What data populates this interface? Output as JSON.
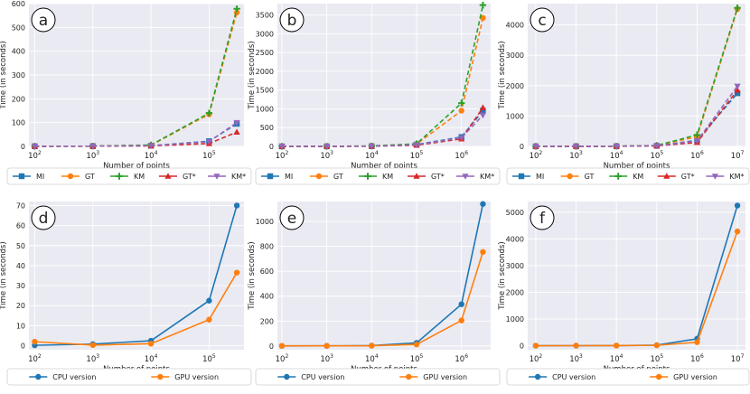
{
  "colors": {
    "plot_bg": "#eaeaf2",
    "grid": "#ffffff",
    "MI": "#1f77b4",
    "GT": "#ff7f0e",
    "KM": "#2ca02c",
    "GT*": "#d62728",
    "KM*": "#9467bd",
    "CPU version": "#1f77b4",
    "GPU version": "#ff7f0e"
  },
  "legend_top": {
    "entries": [
      {
        "name": "MI",
        "color": "#1f77b4",
        "marker": "square"
      },
      {
        "name": "GT",
        "color": "#ff7f0e",
        "marker": "circle"
      },
      {
        "name": "KM",
        "color": "#2ca02c",
        "marker": "plus"
      },
      {
        "name": "GT*",
        "color": "#d62728",
        "marker": "triangle"
      },
      {
        "name": "KM*",
        "color": "#9467bd",
        "marker": "triangle-down"
      }
    ]
  },
  "legend_bottom": {
    "entries": [
      {
        "name": "CPU version",
        "color": "#1f77b4",
        "marker": "circle"
      },
      {
        "name": "GPU version",
        "color": "#ff7f0e",
        "marker": "circle"
      }
    ]
  },
  "chart_data": [
    {
      "panel_label": "a",
      "type": "line",
      "xscale": "log",
      "xlabel": "Number of points",
      "ylabel": "Time (in seconds)",
      "ylim": [
        0,
        600
      ],
      "yticks": [
        0,
        100,
        200,
        300,
        400,
        500,
        600
      ],
      "xlim_exp": [
        1.9,
        5.6
      ],
      "xtick_exps": [
        2,
        3,
        4,
        5
      ],
      "line_style": "dashed",
      "x": [
        100,
        1000,
        10000,
        100000,
        300000
      ],
      "series": [
        {
          "name": "MI",
          "values": [
            0.5,
            1,
            3,
            22,
            95
          ]
        },
        {
          "name": "GT",
          "values": [
            0.5,
            1,
            5,
            135,
            563
          ]
        },
        {
          "name": "KM",
          "values": [
            0.5,
            1,
            6,
            140,
            578
          ]
        },
        {
          "name": "GT*",
          "values": [
            0.3,
            0.8,
            2,
            12,
            60
          ]
        },
        {
          "name": "KM*",
          "values": [
            0.4,
            0.9,
            3,
            20,
            100
          ]
        }
      ]
    },
    {
      "panel_label": "b",
      "type": "line",
      "xscale": "log",
      "xlabel": "Number of points",
      "ylabel": "Time (in seconds)",
      "ylim": [
        0,
        3800
      ],
      "yticks": [
        0,
        500,
        1000,
        1500,
        2000,
        2500,
        3000,
        3500
      ],
      "xlim_exp": [
        1.9,
        6.65
      ],
      "xtick_exps": [
        2,
        3,
        4,
        5,
        6
      ],
      "line_style": "dashed",
      "x": [
        100,
        1000,
        10000,
        100000,
        1000000,
        3000000
      ],
      "series": [
        {
          "name": "MI",
          "values": [
            0.5,
            1,
            5,
            50,
            250,
            950
          ]
        },
        {
          "name": "GT",
          "values": [
            1,
            2,
            10,
            60,
            950,
            3420
          ]
        },
        {
          "name": "KM",
          "values": [
            1,
            2,
            10,
            70,
            1150,
            3760
          ]
        },
        {
          "name": "GT*",
          "values": [
            0.5,
            1,
            4,
            30,
            200,
            1030
          ]
        },
        {
          "name": "KM*",
          "values": [
            0.5,
            1,
            5,
            40,
            230,
            830
          ]
        }
      ]
    },
    {
      "panel_label": "c",
      "type": "line",
      "xscale": "log",
      "xlabel": "Number of points",
      "ylabel": "Time (in seconds)",
      "ylim": [
        0,
        4700
      ],
      "yticks": [
        0,
        1000,
        2000,
        3000,
        4000
      ],
      "xlim_exp": [
        1.8,
        7.2
      ],
      "xtick_exps": [
        2,
        3,
        4,
        5,
        6,
        7
      ],
      "line_style": "dashed",
      "x": [
        100,
        1000,
        10000,
        100000,
        1000000,
        10000000
      ],
      "series": [
        {
          "name": "MI",
          "values": [
            1,
            2,
            5,
            20,
            200,
            1750
          ]
        },
        {
          "name": "GT",
          "values": [
            1,
            2,
            5,
            25,
            320,
            4520
          ]
        },
        {
          "name": "KM",
          "values": [
            1,
            2,
            6,
            30,
            380,
            4560
          ]
        },
        {
          "name": "GT*",
          "values": [
            1,
            1,
            4,
            15,
            130,
            1850
          ]
        },
        {
          "name": "KM*",
          "values": [
            1,
            2,
            5,
            20,
            180,
            1980
          ]
        }
      ]
    },
    {
      "panel_label": "d",
      "type": "line",
      "xscale": "log",
      "xlabel": "Number of points",
      "ylabel": "Time (in seconds)",
      "ylim": [
        -2,
        72
      ],
      "yticks": [
        0,
        10,
        20,
        30,
        40,
        50,
        60,
        70
      ],
      "xlim_exp": [
        1.9,
        5.6
      ],
      "xtick_exps": [
        2,
        3,
        4,
        5
      ],
      "line_style": "solid",
      "x": [
        100,
        1000,
        10000,
        100000,
        300000
      ],
      "series": [
        {
          "name": "CPU version",
          "values": [
            0.2,
            0.8,
            2.5,
            22.5,
            70
          ]
        },
        {
          "name": "GPU version",
          "values": [
            2,
            0.3,
            1,
            13,
            36.5
          ]
        }
      ]
    },
    {
      "panel_label": "e",
      "type": "line",
      "xscale": "log",
      "xlabel": "Number of points",
      "ylabel": "Time (in seconds)",
      "ylim": [
        -30,
        1160
      ],
      "yticks": [
        0,
        200,
        400,
        600,
        800,
        1000
      ],
      "xlim_exp": [
        1.9,
        6.65
      ],
      "xtick_exps": [
        2,
        3,
        4,
        5,
        6
      ],
      "line_style": "solid",
      "x": [
        100,
        1000,
        10000,
        100000,
        1000000,
        3000000
      ],
      "series": [
        {
          "name": "CPU version",
          "values": [
            0.5,
            1,
            3,
            25,
            335,
            1140
          ]
        },
        {
          "name": "GPU version",
          "values": [
            1,
            1,
            2,
            12,
            205,
            755
          ]
        }
      ]
    },
    {
      "panel_label": "f",
      "type": "line",
      "xscale": "log",
      "xlabel": "Number of points",
      "ylabel": "Time (in seconds)",
      "ylim": [
        -150,
        5400
      ],
      "yticks": [
        0,
        1000,
        2000,
        3000,
        4000,
        5000
      ],
      "xlim_exp": [
        1.8,
        7.2
      ],
      "xtick_exps": [
        2,
        3,
        4,
        5,
        6,
        7
      ],
      "line_style": "solid",
      "x": [
        100,
        1000,
        10000,
        100000,
        1000000,
        10000000
      ],
      "series": [
        {
          "name": "CPU version",
          "values": [
            1,
            2,
            5,
            20,
            260,
            5250
          ]
        },
        {
          "name": "GPU version",
          "values": [
            1,
            2,
            4,
            15,
            130,
            4280
          ]
        }
      ]
    }
  ]
}
